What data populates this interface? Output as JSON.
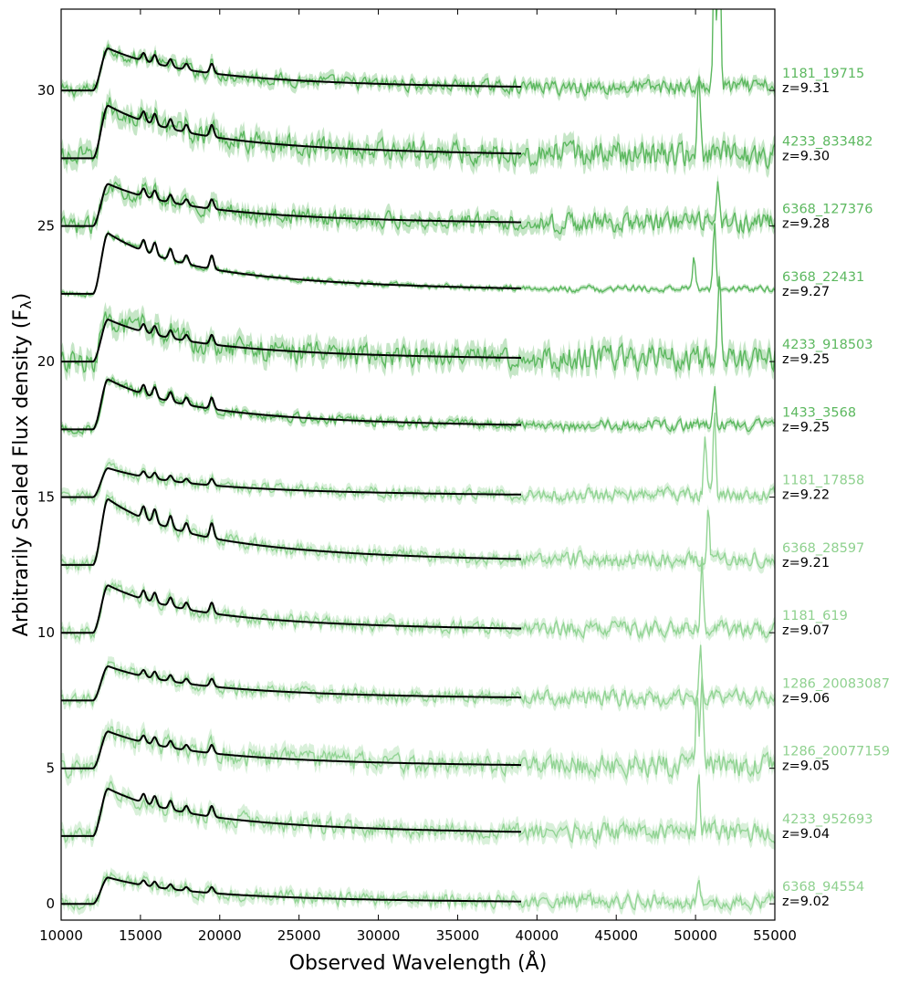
{
  "chart_data": {
    "type": "line",
    "xlabel": "Observed Wavelength (Å)",
    "ylabel": "Arbitrarily Scaled Flux density (F",
    "ylabel_sub": "λ",
    "ylabel_close": ")",
    "xlim": [
      10000,
      55000
    ],
    "ylim": [
      -0.6,
      33
    ],
    "xticks": [
      10000,
      15000,
      20000,
      25000,
      30000,
      35000,
      40000,
      45000,
      50000,
      55000
    ],
    "yticks": [
      0,
      5,
      10,
      15,
      20,
      25,
      30
    ],
    "model_end_wavelength": 39000,
    "colors": {
      "model": "#000000",
      "shade_dark": "#5cb85f",
      "shade_light": "#92d494",
      "label_dark": "#5cb85f",
      "label_light": "#8fd18f"
    },
    "series": [
      {
        "name": "1181_19715",
        "z_label": "z=9.31",
        "offset": 30.0,
        "peak": 1.6,
        "noise": 0.35,
        "emission": [
          {
            "x": 51500,
            "h": 6
          },
          {
            "x": 51200,
            "h": 5
          }
        ]
      },
      {
        "name": "4233_833482",
        "z_label": "z=9.30",
        "offset": 27.5,
        "peak": 2.0,
        "noise": 0.6,
        "emission": [
          {
            "x": 50200,
            "h": 2.5
          }
        ]
      },
      {
        "name": "6368_127376",
        "z_label": "z=9.28",
        "offset": 25.0,
        "peak": 1.6,
        "noise": 0.45,
        "emission": [
          {
            "x": 51400,
            "h": 1.5
          }
        ]
      },
      {
        "name": "6368_22431",
        "z_label": "z=9.27",
        "offset": 22.5,
        "peak": 2.3,
        "noise": 0.15,
        "emission": [
          {
            "x": 49900,
            "h": 1.2
          },
          {
            "x": 51200,
            "h": 2.5
          }
        ]
      },
      {
        "name": "4233_918503",
        "z_label": "z=9.25",
        "offset": 20.0,
        "peak": 1.6,
        "noise": 0.6,
        "emission": [
          {
            "x": 51500,
            "h": 3.5
          }
        ]
      },
      {
        "name": "1433_3568",
        "z_label": "z=9.25",
        "offset": 17.5,
        "peak": 1.9,
        "noise": 0.25,
        "emission": [
          {
            "x": 51200,
            "h": 1.5
          }
        ]
      },
      {
        "name": "1181_17858",
        "z_label": "z=9.22",
        "offset": 15.0,
        "peak": 1.1,
        "noise": 0.3,
        "emission": [
          {
            "x": 50600,
            "h": 2
          },
          {
            "x": 51200,
            "h": 3
          }
        ]
      },
      {
        "name": "6368_28597",
        "z_label": "z=9.21",
        "offset": 12.5,
        "peak": 2.5,
        "noise": 0.35,
        "emission": [
          {
            "x": 50800,
            "h": 2
          }
        ]
      },
      {
        "name": "1181_619",
        "z_label": "z=9.07",
        "offset": 10.0,
        "peak": 1.8,
        "noise": 0.35,
        "emission": [
          {
            "x": 50400,
            "h": 2.5
          }
        ]
      },
      {
        "name": "1286_20083087",
        "z_label": "z=9.06",
        "offset": 7.5,
        "peak": 1.3,
        "noise": 0.35,
        "emission": [
          {
            "x": 50300,
            "h": 2
          }
        ]
      },
      {
        "name": "1286_20077159",
        "z_label": "z=9.05",
        "offset": 5.0,
        "peak": 1.4,
        "noise": 0.5,
        "emission": [
          {
            "x": 50100,
            "h": 3
          },
          {
            "x": 50400,
            "h": 3
          }
        ]
      },
      {
        "name": "4233_952693",
        "z_label": "z=9.04",
        "offset": 2.5,
        "peak": 1.8,
        "noise": 0.45,
        "emission": [
          {
            "x": 50200,
            "h": 2.5
          }
        ]
      },
      {
        "name": "6368_94554",
        "z_label": "z=9.02",
        "offset": 0.0,
        "peak": 1.0,
        "noise": 0.35,
        "emission": [
          {
            "x": 50200,
            "h": 1.0
          }
        ]
      }
    ]
  }
}
